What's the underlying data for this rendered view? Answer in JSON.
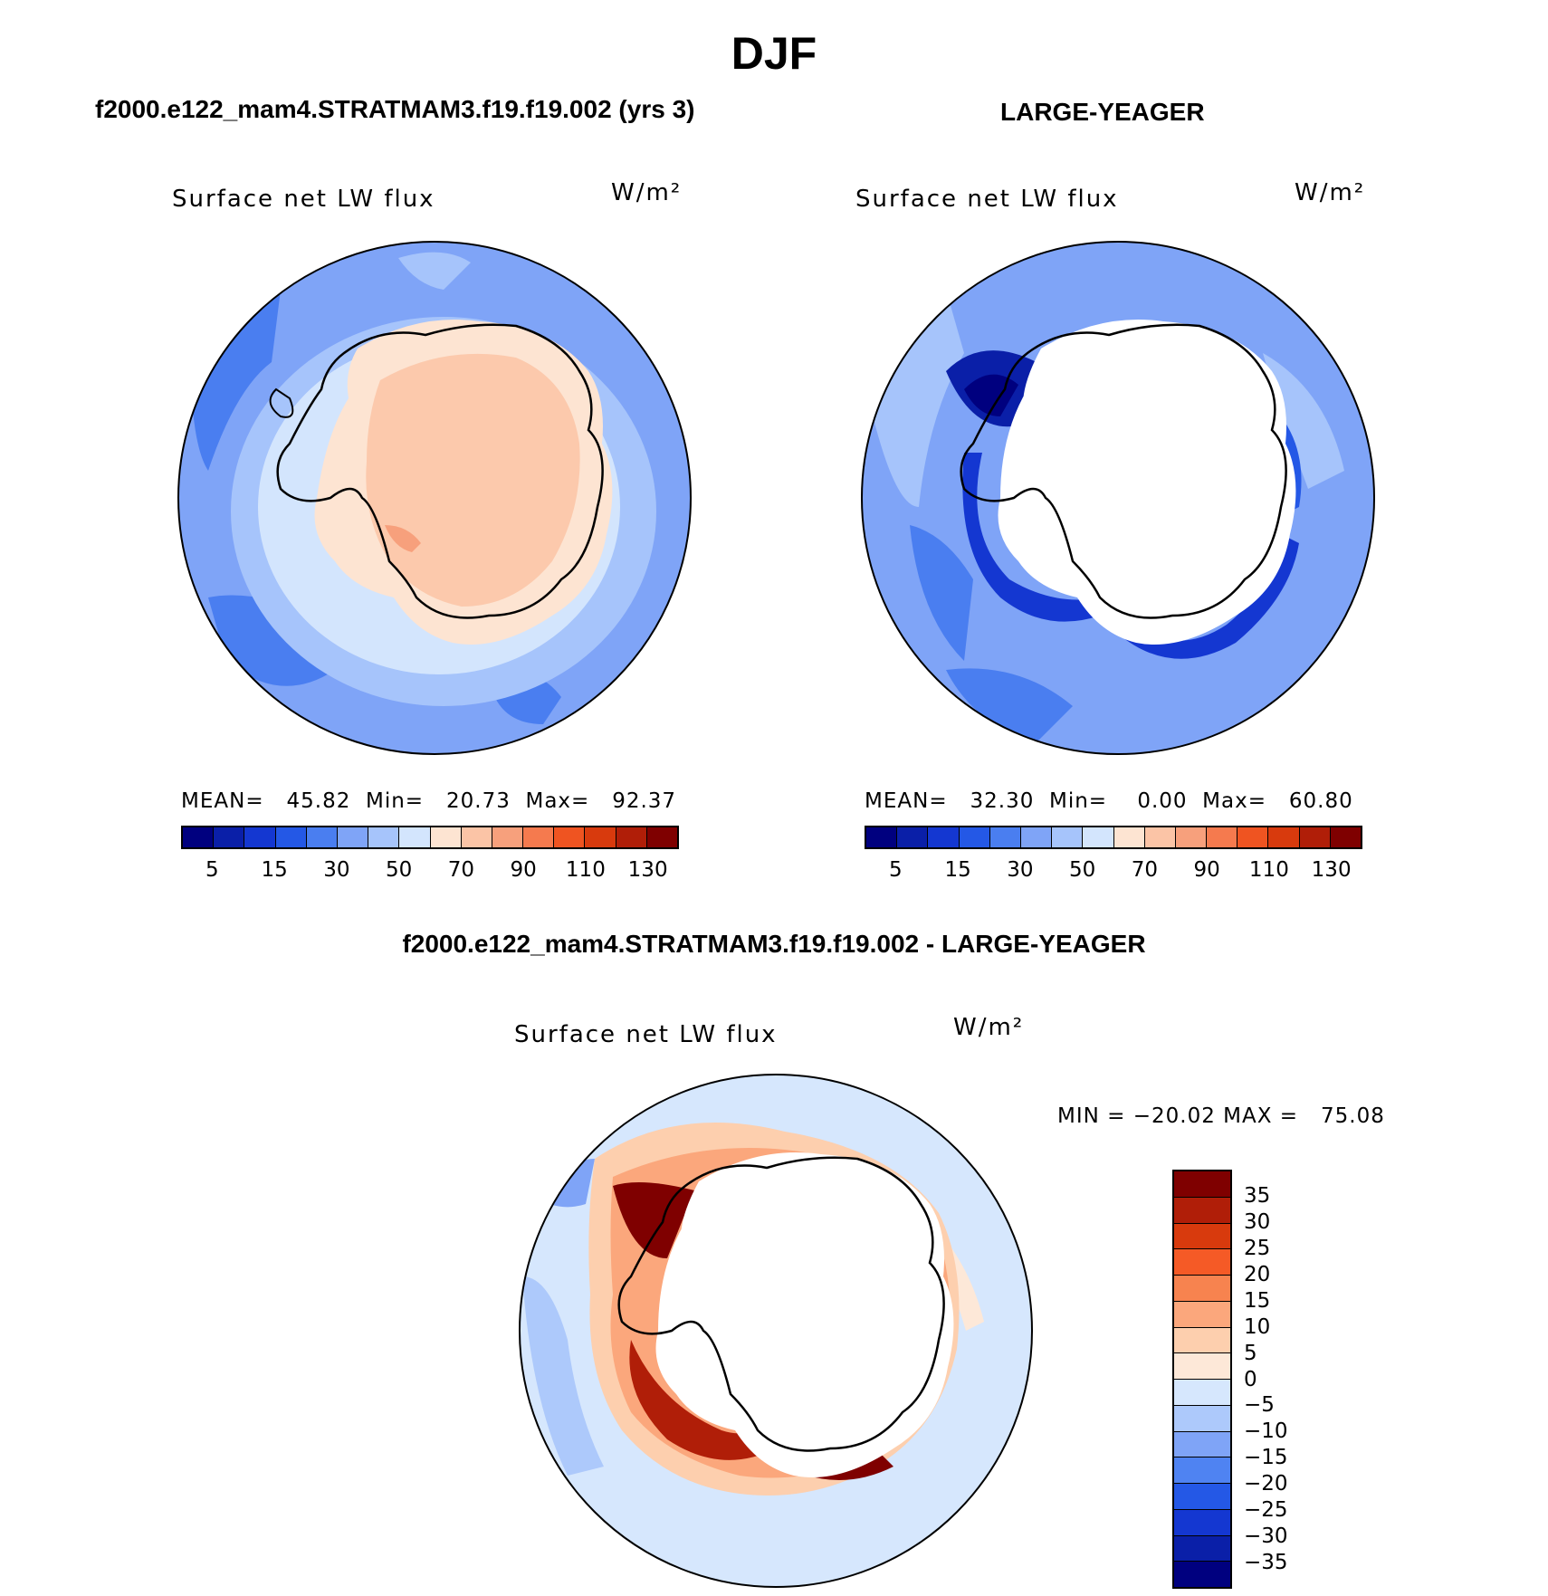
{
  "figure": {
    "season": "DJF",
    "difference_title": "f2000.e122_mam4.STRATMAM3.f19.f19.002 - LARGE-YEAGER"
  },
  "panels": {
    "model": {
      "title": "f2000.e122_mam4.STRATMAM3.f19.f19.002 (yrs 3)",
      "variable": "Surface net LW flux",
      "units": "W/m²",
      "stats": "MEAN=   45.82  Min=   20.73  Max=   92.37"
    },
    "obs": {
      "title": "LARGE-YEAGER",
      "variable": "Surface net LW flux",
      "units": "W/m²",
      "stats": "MEAN=   32.30  Min=    0.00  Max=   60.80"
    },
    "diff": {
      "variable": "Surface net LW flux",
      "units": "W/m²",
      "stats": "MIN = −20.02 MAX =   75.08"
    }
  },
  "colorbar_abs": {
    "colors": [
      "#00007f",
      "#0a1fa8",
      "#1437d1",
      "#2458e6",
      "#4a7ef0",
      "#7fa4f7",
      "#a6c4fb",
      "#d3e5fd",
      "#fde4d2",
      "#fbc4a6",
      "#f7a07c",
      "#f57a4e",
      "#ef5421",
      "#d83a0d",
      "#b01e08",
      "#7f0000"
    ],
    "tick_labels": [
      "5",
      "15",
      "30",
      "50",
      "70",
      "90",
      "110",
      "130"
    ]
  },
  "colorbar_diff": {
    "colors": [
      "#7f0000",
      "#b01e08",
      "#d83a0d",
      "#f55a26",
      "#f7834f",
      "#fba77c",
      "#fdcfae",
      "#fde8d8",
      "#d6e7fd",
      "#adc9fb",
      "#7fa4f7",
      "#4f83f2",
      "#2458e6",
      "#1437d1",
      "#0a1fa8",
      "#00007f"
    ],
    "tick_labels": [
      "35",
      "30",
      "25",
      "20",
      "15",
      "10",
      "5",
      "0",
      "−5",
      "−10",
      "−15",
      "−20",
      "−25",
      "−30",
      "−35"
    ]
  }
}
